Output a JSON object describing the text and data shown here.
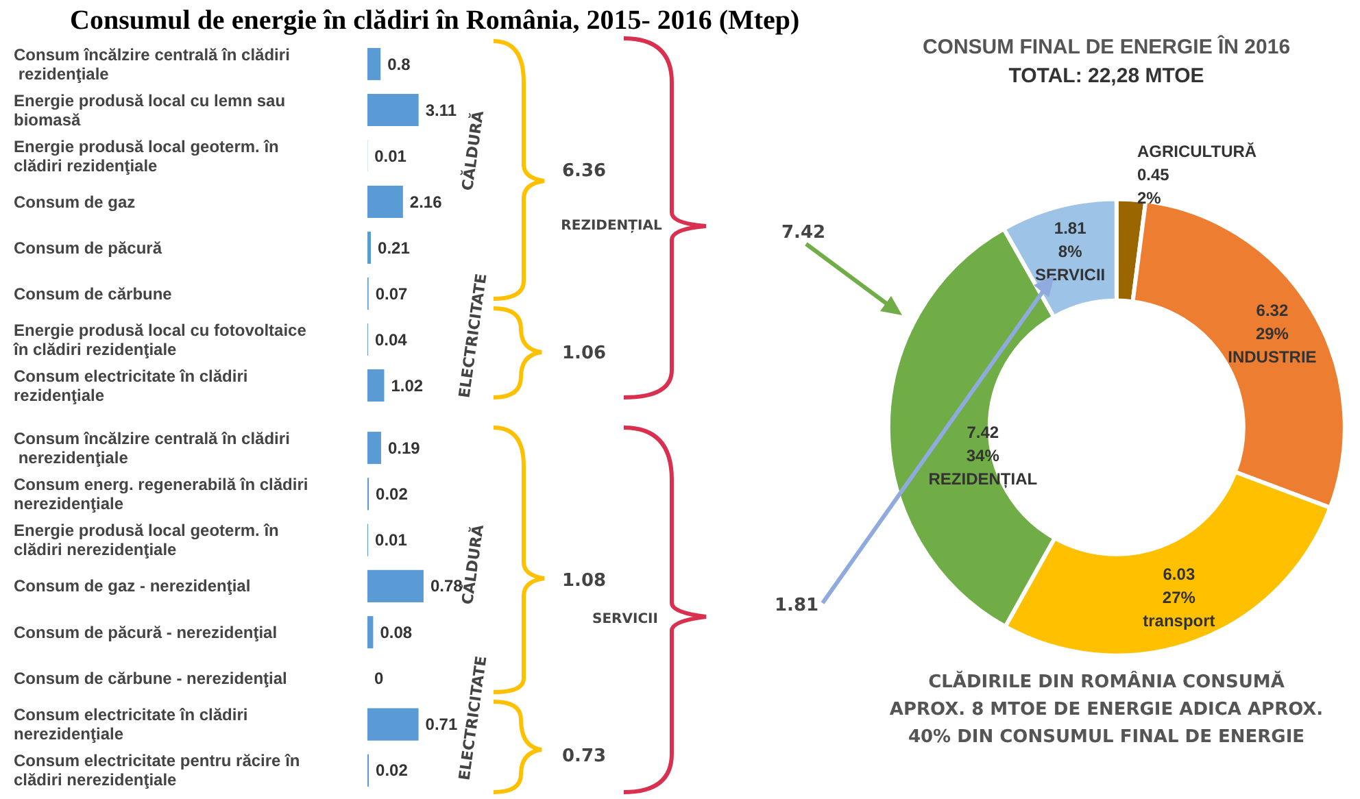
{
  "chart_data": [
    {
      "type": "bar",
      "orientation": "horizontal",
      "title": "Consumul de energie în clădiri în România, 2015- 2016 (Mtep)",
      "categories": [
        "Consum încălzire centrală în clădiri rezidenţiale",
        "Energie produsă local cu lemn sau biomasă",
        "Energie produsă local geoterm. în clădiri rezidenţiale",
        "Consum de gaz",
        "Consum de păcură",
        "Consum de cărbune",
        "Energie produsă local cu fotovoltaice în clădiri rezidenţiale",
        "Consum electricitate în clădiri rezidenţiale"
      ],
      "values": [
        0.8,
        3.11,
        0.01,
        2.16,
        0.21,
        0.07,
        0.04,
        1.02
      ],
      "color": "#5b9bd5",
      "data_labels": true,
      "annotations": [
        "CĂLDURĂ",
        "6.36",
        "ELECTRICITATE",
        "1.06",
        "REZIDENȚIAL",
        "7.42"
      ]
    },
    {
      "type": "bar",
      "orientation": "horizontal",
      "categories": [
        "Consum încălzire centrală în clădiri nerezidenţiale",
        "Consum energ. regenerabilă în clădiri nerezidenţiale",
        "Energie produsă local geoterm. în clădiri nerezidenţiale",
        "Consum de gaz - nerezidenţial",
        "Consum de păcură - nerezidenţial",
        "Consum de cărbune - nerezidenţial",
        "Consum electricitate în clădiri nerezidenţiale",
        "Consum electricitate pentru răcire în clădiri nerezidenţiale"
      ],
      "values": [
        0.19,
        0.02,
        0.01,
        0.78,
        0.08,
        0,
        0.71,
        0.02
      ],
      "color": "#5b9bd5",
      "data_labels": true,
      "annotations": [
        "CĂLDURĂ",
        "1.08",
        "ELECTRICITATE",
        "0.73",
        "SERVICII",
        "1.81"
      ]
    },
    {
      "type": "donut",
      "title": "CONSUM FINAL DE ENERGIE ÎN 2016",
      "subtitle": "TOTAL: 22,28 MTOE",
      "categories": [
        "AGRICULTURĂ",
        "INDUSTRIE",
        "transport",
        "REZIDENȚIAL",
        "SERVICII"
      ],
      "values": [
        0.45,
        6.32,
        6.03,
        7.42,
        1.81
      ],
      "colors": [
        "#996600",
        "#ed7d31",
        "#ffc000",
        "#70ad47",
        "#9dc3e6"
      ],
      "value_labels": [
        "0.45\n2%",
        "6.32\n29%",
        "6.03\n27%",
        "7.42\n34%",
        "1.81\n8%"
      ],
      "annotations": [
        "CLĂDIRILE DIN ROMÂNIA CONSUMĂ\nAPROX. 8 MTOE DE ENERGIE ADICA APROX.\n40% DIN CONSUMUL FINAL DE ENERGIE"
      ]
    }
  ]
}
